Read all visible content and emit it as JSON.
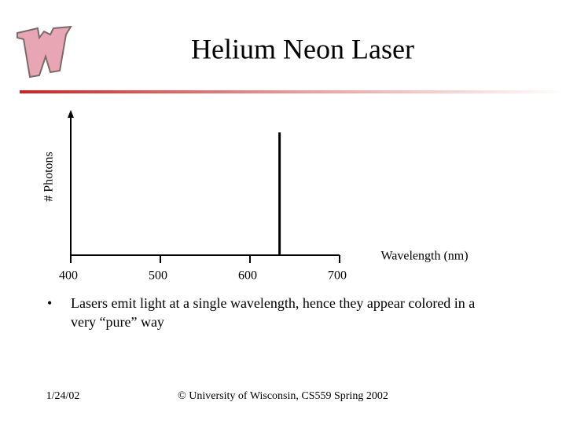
{
  "slide": {
    "title": "Helium Neon Laser",
    "bullet": [
      "Lasers emit light at a single wavelength, hence they appear colored in a",
      "very “pure” way"
    ],
    "footer_date": "1/24/02",
    "footer_credit": "© University of Wisconsin, CS559 Spring 2002"
  },
  "chart_data": {
    "type": "stem",
    "x_label": "Wavelength (nm)",
    "y_label": "# Photons",
    "x": [
      633
    ],
    "values": [
      1
    ],
    "color": "#000000",
    "xlim": [
      400,
      700
    ],
    "xticks": [
      400,
      500,
      600,
      700
    ],
    "ylim": [
      0,
      1.15
    ]
  }
}
